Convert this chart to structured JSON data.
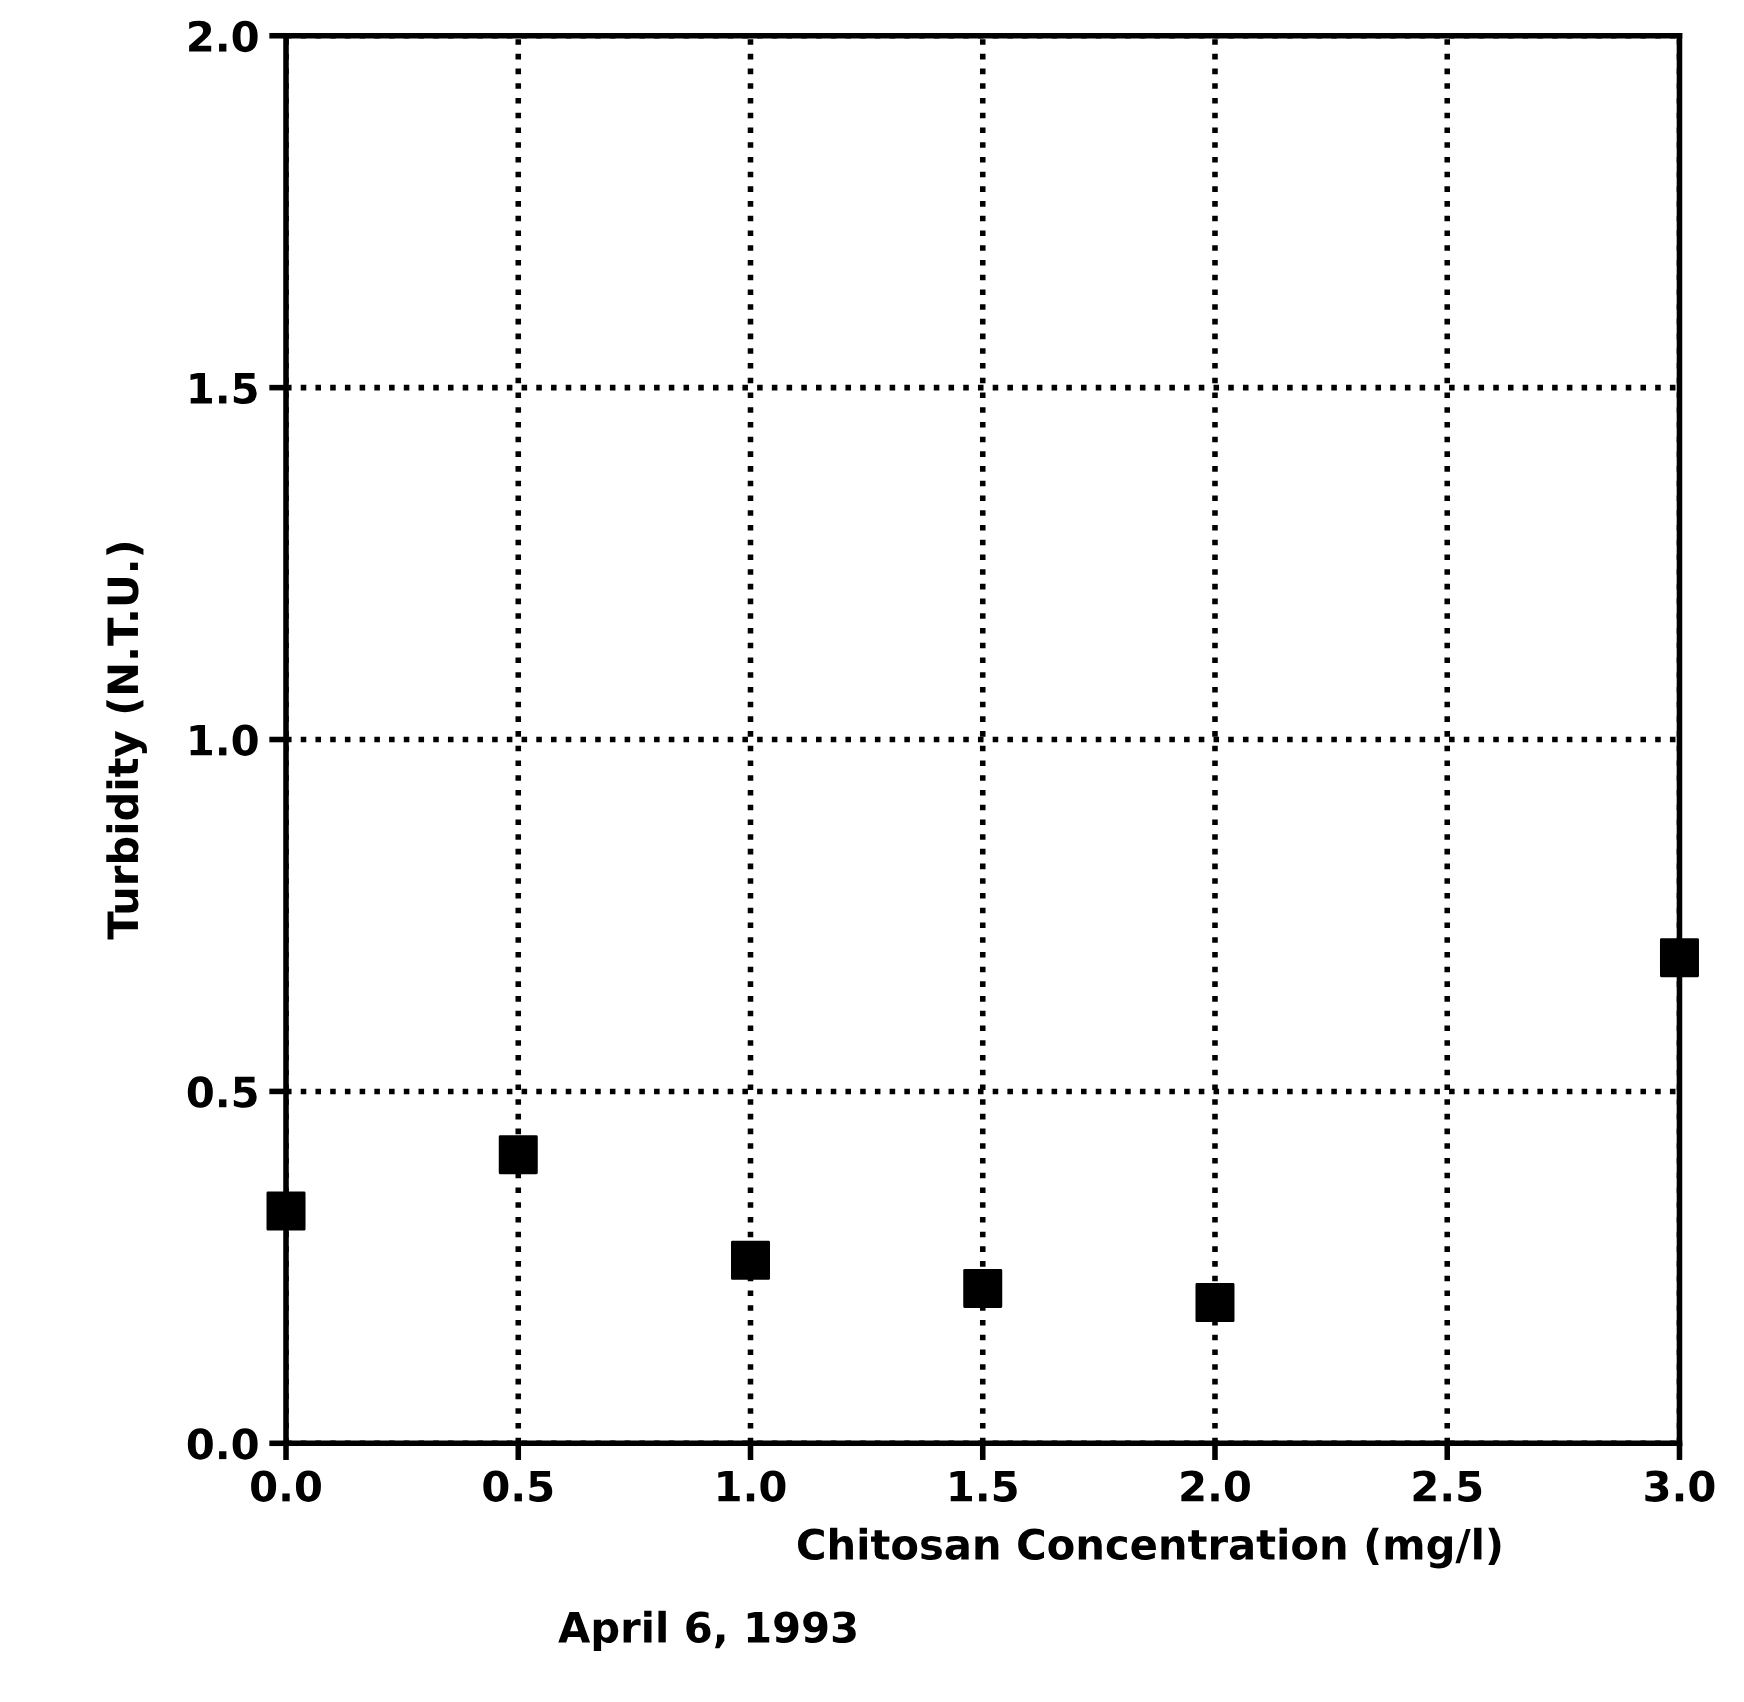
{
  "chart_data": {
    "type": "scatter",
    "xlabel": "Chitosan Concentration (mg/l)",
    "ylabel": "Turbidity (N.T.U.)",
    "annotations": [
      "April 6, 1993"
    ],
    "x": [
      0.0,
      0.5,
      1.0,
      1.5,
      2.0,
      3.0
    ],
    "series": [
      {
        "color": "#000000",
        "values": [
          0.33,
          0.41,
          0.26,
          0.22,
          0.2,
          0.69
        ]
      }
    ],
    "xlim": [
      0,
      3
    ],
    "xticks": [
      {
        "value": 0,
        "label": "0.0"
      },
      {
        "value": 0.5,
        "label": "0.5"
      },
      {
        "value": 1,
        "label": "1.0"
      },
      {
        "value": 1.5,
        "label": "1.5"
      },
      {
        "value": 2,
        "label": "2.0"
      },
      {
        "value": 2.5,
        "label": "2.5"
      },
      {
        "value": 3,
        "label": "3.0"
      }
    ],
    "ylim": [
      0,
      2
    ],
    "yticks": [
      {
        "value": 0,
        "label": "0.0"
      },
      {
        "value": 0.5,
        "label": "0.5"
      },
      {
        "value": 1,
        "label": "1.0"
      },
      {
        "value": 1.5,
        "label": "1.5"
      },
      {
        "value": 2,
        "label": "2.0"
      }
    ],
    "grid": true,
    "marker": "square",
    "line_style": "dotted"
  }
}
